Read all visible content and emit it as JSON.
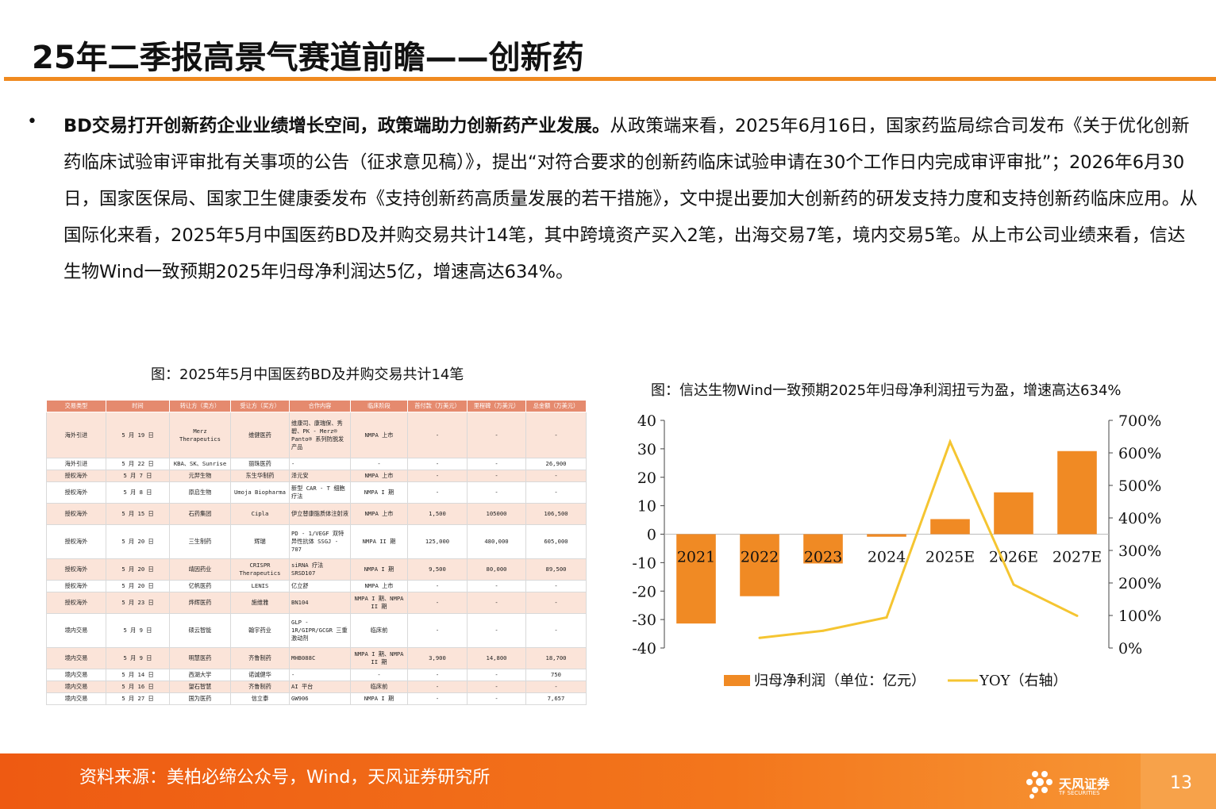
{
  "page": {
    "title": "25年二季报高景气赛道前瞻——创新药",
    "bullet": "•",
    "para_bold": "BD交易打开创新药企业业绩增长空间，政策端助力创新药产业发展。",
    "para_text": "从政策端来看，2025年6月16日，国家药监局综合司发布《关于优化创新药临床试验审评审批有关事项的公告（征求意见稿）》，提出“对符合要求的创新药临床试验申请在30个工作日内完成审评审批”；2026年6月30日，国家医保局、国家卫生健康委发布《支持创新药高质量发展的若干措施》，文中提出要加大创新药的研发支持力度和支持创新药临床应用。从国际化来看，2025年5月中国医药BD及并购交易共计14笔，其中跨境资产买入2笔，出海交易7笔，境内交易5笔。从上市公司业绩来看，信达生物Wind一致预期2025年归母净利润达5亿，增速高达634%。"
  },
  "table": {
    "caption": "图：2025年5月中国医药BD及并购交易共计14笔",
    "headers": [
      "交易类型",
      "时间",
      "转让方（卖方）",
      "受让方（买方）",
      "合作内容",
      "临床阶段",
      "首付款（万美元）",
      "里程碑（万美元）",
      "总金额（万美元）"
    ],
    "rows": [
      [
        "海外引进",
        "5 月 19 日",
        "Merz Therapeutics",
        "维健医药",
        "维康司、康瑞保、秀碧、PK - Merz® Panto® 系列防脱发产品",
        "NMPA 上市",
        "-",
        "-",
        "-"
      ],
      [
        "海外引进",
        "5 月 22 日",
        "KBA、SK、Sunrise",
        "丽珠医药",
        "-",
        "-",
        "-",
        "-",
        "26,900"
      ],
      [
        "授权海外",
        "5 月 7 日",
        "元羿生物",
        "东生华制药",
        "泽元安",
        "NMPA 上市",
        "-",
        "-",
        "-"
      ],
      [
        "授权海外",
        "5 月 8 日",
        "原启生物",
        "Umoja Biopharma",
        "新型 CAR - T 细胞疗法",
        "NMPA I 期",
        "-",
        "-",
        "-"
      ],
      [
        "授权海外",
        "5 月 15 日",
        "石药集团",
        "Cipla",
        "伊立替康脂质体注射液",
        "NMPA 上市",
        "1,500",
        "105000",
        "106,500"
      ],
      [
        "授权海外",
        "5 月 20 日",
        "三生制药",
        "辉瑞",
        "PD - 1/VEGF 双特异性抗体 SSGJ - 707",
        "NMPA II 期",
        "125,000",
        "480,000",
        "605,000"
      ],
      [
        "授权海外",
        "5 月 20 日",
        "靖因药业",
        "CRISPR Therapeutics",
        "siRNA 疗法 SRSD107",
        "NMPA I 期",
        "9,500",
        "80,000",
        "89,500"
      ],
      [
        "授权海外",
        "5 月 20 日",
        "亿帆医药",
        "LENIS",
        "亿立舒",
        "NMPA 上市",
        "-",
        "-",
        "-"
      ],
      [
        "授权海外",
        "5 月 23 日",
        "烨辉医药",
        "施维雅",
        "BN104",
        "NMPA I 期、NMPA II 期",
        "-",
        "-",
        "-"
      ],
      [
        "境内交易",
        "5 月 9 日",
        "硕云智能",
        "翰宇药业",
        "GLP - 1R/GIPR/GCGR 三重激动剂",
        "临床前",
        "-",
        "-",
        "-"
      ],
      [
        "境内交易",
        "5 月 9 日",
        "明慧医药",
        "齐鲁制药",
        "MHB088C",
        "NMPA I 期、NMPA II 期",
        "3,900",
        "14,800",
        "18,700"
      ],
      [
        "境内交易",
        "5 月 14 日",
        "西湖大学",
        "诺诚健华",
        "-",
        "-",
        "-",
        "-",
        "750"
      ],
      [
        "境内交易",
        "5 月 16 日",
        "望石智慧",
        "齐鲁制药",
        "AI 平台",
        "临床前",
        "-",
        "-",
        "-"
      ],
      [
        "境内交易",
        "5 月 27 日",
        "国为医药",
        "信立泰",
        "GW906",
        "NMPA I 期",
        "-",
        "-",
        "7,657"
      ]
    ]
  },
  "chart_caption": "图：信达生物Wind一致预期2025年归母净利润扭亏为盈，增速高达634%",
  "chart_data": {
    "type": "bar",
    "categories": [
      "2021",
      "2022",
      "2023",
      "2024",
      "2025E",
      "2026E",
      "2027E"
    ],
    "series": [
      {
        "name": "归母净利润（单位：亿元）",
        "type": "bar",
        "axis": "left",
        "values": [
          -31.4,
          -21.8,
          -10.3,
          -0.9,
          5.3,
          14.7,
          29.2
        ],
        "color": "#f08a24"
      },
      {
        "name": "YOY（右轴）",
        "type": "line",
        "axis": "right",
        "values": [
          null,
          31,
          53,
          94,
          634,
          195,
          99
        ],
        "color": "#f5c531"
      }
    ],
    "left_axis": {
      "min": -40,
      "max": 40,
      "ticks": [
        "40",
        "30",
        "20",
        "10",
        "0",
        "-10",
        "-20",
        "-30",
        "-40"
      ]
    },
    "right_axis": {
      "min": 0,
      "max": 7,
      "ticks": [
        "700%",
        "600%",
        "500%",
        "400%",
        "300%",
        "200%",
        "100%",
        "0%"
      ]
    },
    "legend_position": "bottom"
  },
  "footer": {
    "source": "资料来源：美柏必缔公众号，Wind，天风证券研究所",
    "logo_text": "天风证券",
    "logo_sub": "TF SECURITIES",
    "page_number": "13"
  }
}
